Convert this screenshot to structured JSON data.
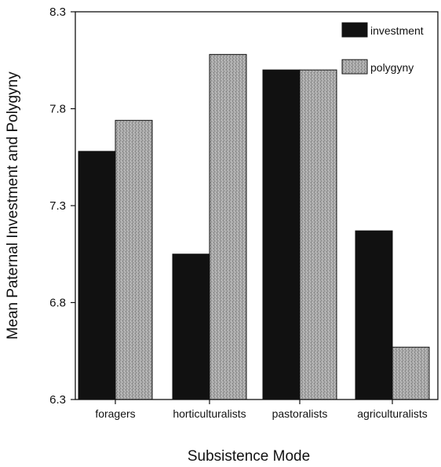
{
  "chart_data": {
    "type": "bar",
    "title": "",
    "xlabel": "Subsistence Mode",
    "ylabel": "Mean Paternal Investment and Polygyny",
    "categories": [
      "foragers",
      "horticulturalists",
      "pastoralists",
      "agriculturalists"
    ],
    "series": [
      {
        "name": "investment",
        "values": [
          7.58,
          7.05,
          8.0,
          7.17
        ],
        "color": "#111111"
      },
      {
        "name": "polygyny",
        "values": [
          7.74,
          8.08,
          8.0,
          6.57
        ],
        "color": "#9a9a9a"
      }
    ],
    "ylim": [
      6.3,
      8.3
    ],
    "yticks": [
      "6.3",
      "6.8",
      "7.3",
      "7.8",
      "8.3"
    ],
    "grid": false,
    "legend": "top-right"
  }
}
